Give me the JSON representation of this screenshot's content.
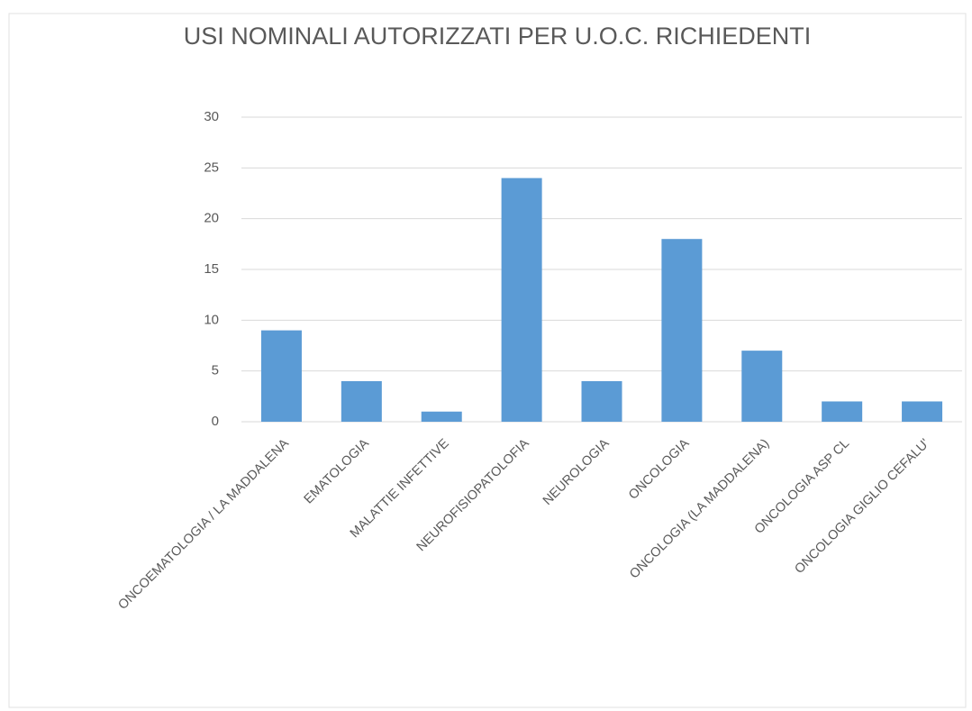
{
  "chart_data": {
    "type": "bar",
    "title": "USI NOMINALI AUTORIZZATI PER U.O.C. RICHIEDENTI",
    "categories": [
      "ONCOEMATOLOGIA / LA MADDALENA",
      "EMATOLOGIA",
      "MALATTIE INFETTIVE",
      "NEUROFISIOPATOLOFIA",
      "NEUROLOGIA",
      "ONCOLOGIA",
      "ONCOLOGIA (LA MADDALENA)",
      "ONCOLOGIA ASP CL",
      "ONCOLOGIA GIGLIO CEFALU'"
    ],
    "values": [
      9,
      4,
      1,
      24,
      4,
      18,
      7,
      2,
      2
    ],
    "color": "#5b9bd5",
    "ylim": [
      0,
      30
    ],
    "yticks": [
      0,
      5,
      10,
      15,
      20,
      25,
      30
    ],
    "grid": true
  }
}
